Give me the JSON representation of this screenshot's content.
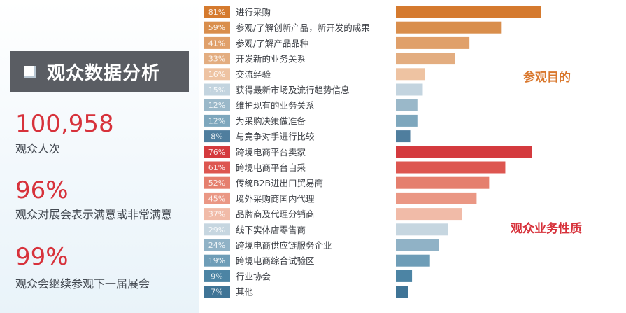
{
  "panel": {
    "title": "观众数据分析",
    "stats": [
      {
        "value": "100,958",
        "label": "观众人次"
      },
      {
        "value": "96%",
        "label": "观众对展会表示满意或非常满意"
      },
      {
        "value": "99%",
        "label": "观众会继续参观下一届展会"
      }
    ]
  },
  "chart_data": [
    {
      "type": "bar",
      "orientation": "horizontal",
      "title": "参观目的",
      "xlim": [
        0,
        85
      ],
      "color": "#d9772c",
      "categories": [
        "进行采购",
        "参观/了解创新产品，新开发的成果",
        "参观/了解产品品种",
        "开发新的业务关系",
        "交流经验",
        "获得最新市场及流行趋势信息",
        "维护现有的业务关系",
        "为采购决策做准备",
        "与竞争对手进行比较"
      ],
      "values": [
        81,
        59,
        41,
        33,
        16,
        15,
        12,
        12,
        8
      ],
      "value_labels": [
        "81%",
        "59%",
        "41%",
        "33%",
        "16%",
        "15%",
        "12%",
        "12%",
        "8%"
      ],
      "bar_colors": [
        "#d57a2e",
        "#d98e4c",
        "#e0a06a",
        "#e3ad80",
        "#eec3a2",
        "#c3d4df",
        "#9ab8c9",
        "#7ea7bd",
        "#4f7e9e"
      ]
    },
    {
      "type": "bar",
      "orientation": "horizontal",
      "title": "观众业务性质",
      "xlim": [
        0,
        85
      ],
      "color": "#d7323b",
      "categories": [
        "跨境电商平台卖家",
        "跨境电商平台自采",
        "传统B2B进出口贸易商",
        "境外采购商国内代理",
        "品牌商及代理分销商",
        "线下实体店零售商",
        "跨境电商供应链服务企业",
        "跨境电商综合试验区",
        "行业协会",
        "其他"
      ],
      "values": [
        76,
        61,
        52,
        45,
        37,
        29,
        24,
        19,
        9,
        7
      ],
      "value_labels": [
        "76%",
        "61%",
        "52%",
        "45%",
        "37%",
        "29%",
        "24%",
        "19%",
        "9%",
        "7%"
      ],
      "bar_colors": [
        "#d43a3e",
        "#dd5650",
        "#e57f6e",
        "#ea9784",
        "#f1bba8",
        "#c6d6e0",
        "#90b2c6",
        "#6e9db7",
        "#4c84a4",
        "#3f7496"
      ]
    }
  ],
  "colors": {
    "title_bar": "#5a5d63",
    "stat_value": "#d7323b",
    "purpose_label": "#d9772c",
    "business_label": "#d7323b"
  }
}
